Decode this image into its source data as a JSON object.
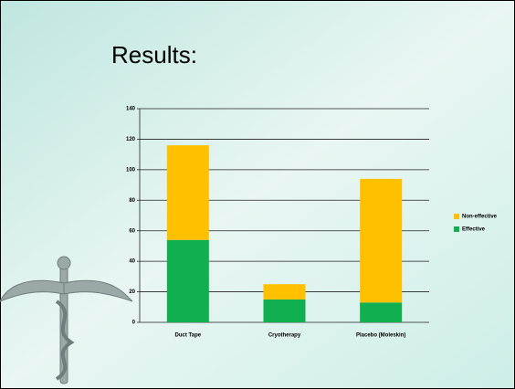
{
  "chart_data": {
    "type": "stacked-bar",
    "title": "Results:",
    "categories": [
      "Duct Tape",
      "Cryotherapy",
      "Placebo (Moleskin)"
    ],
    "series": [
      {
        "name": "Effective",
        "color": "#10b050",
        "values": [
          54,
          15,
          13
        ]
      },
      {
        "name": "Non-effective",
        "color": "#ffc000",
        "values": [
          62,
          10,
          81
        ]
      }
    ],
    "ylim": [
      0,
      140
    ],
    "yticks": [
      0,
      20,
      40,
      60,
      80,
      100,
      120,
      140
    ],
    "grid": true
  }
}
